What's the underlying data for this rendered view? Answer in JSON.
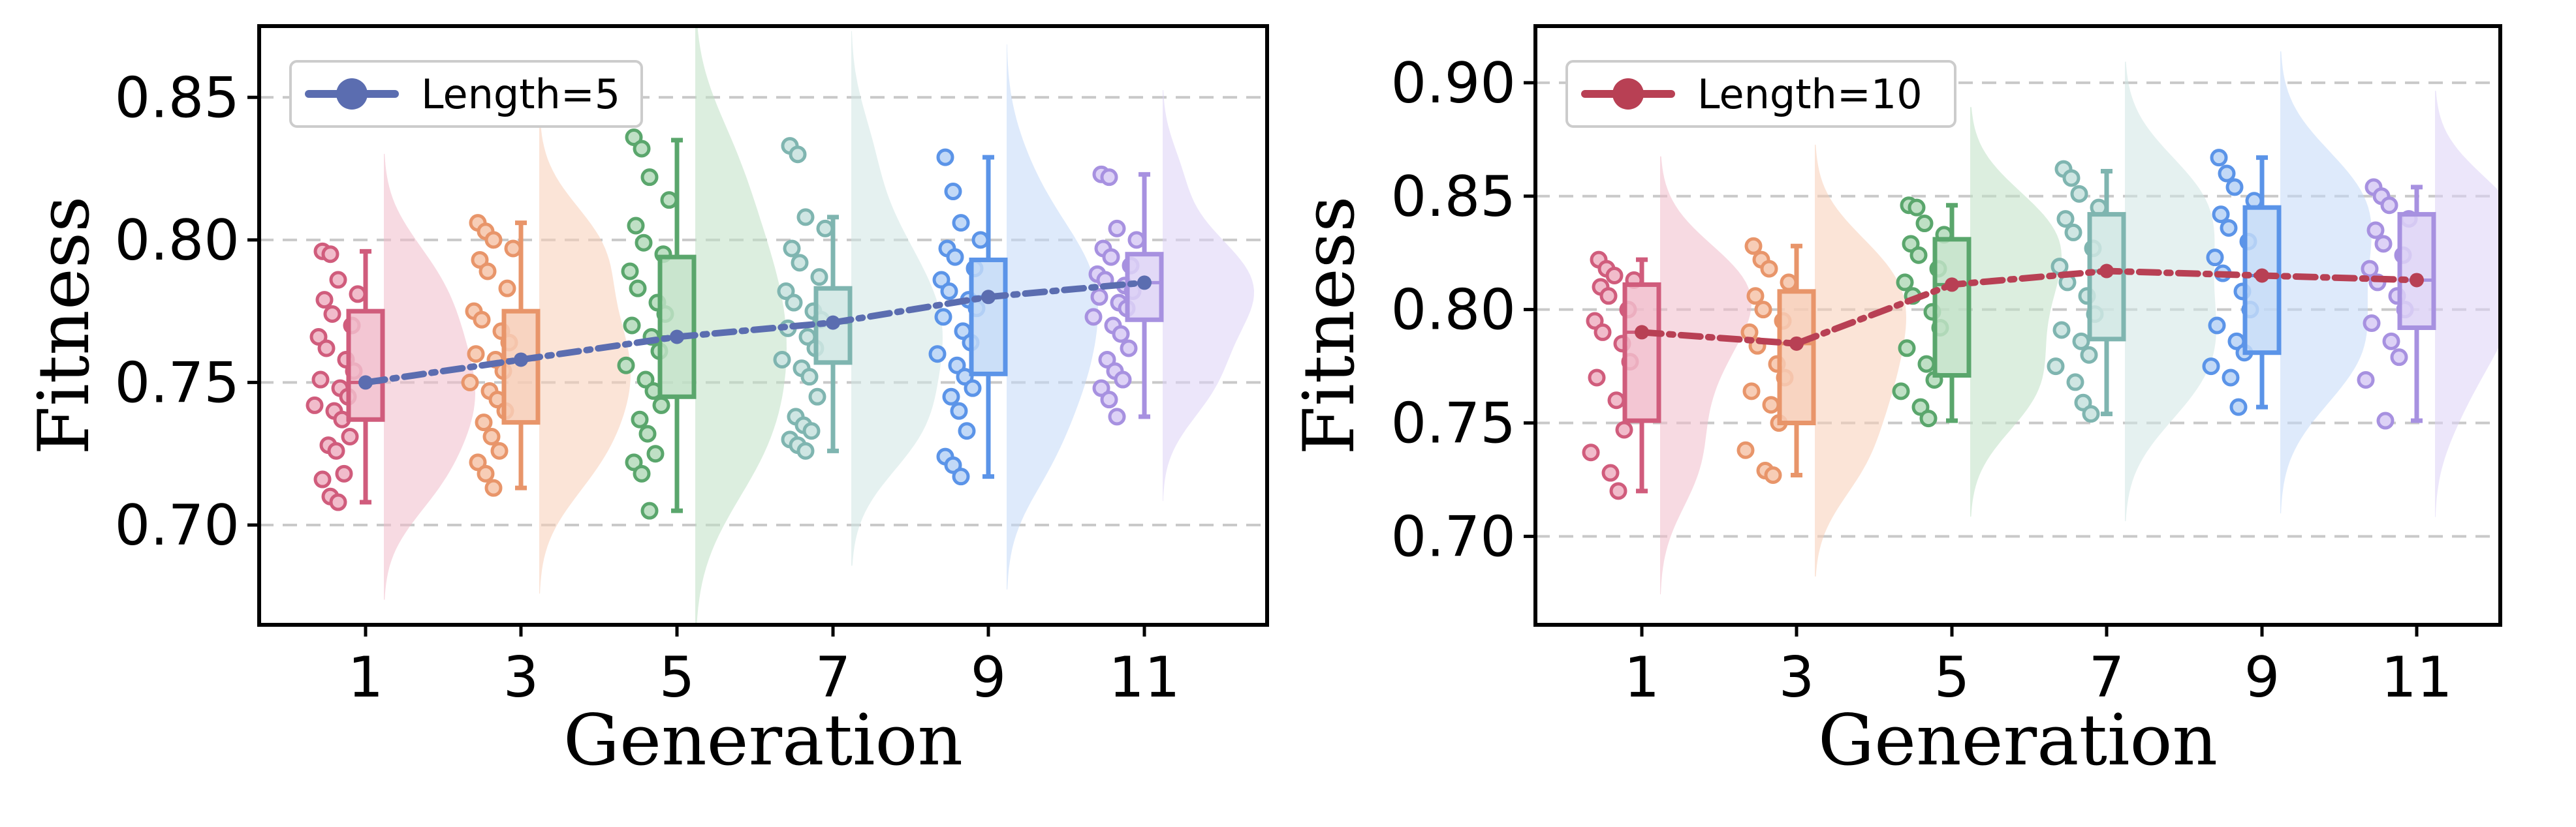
{
  "chart_data": [
    {
      "type": "raincloud",
      "xlabel": "Generation",
      "ylabel": "Fitness",
      "categories": [
        "1",
        "3",
        "5",
        "7",
        "9",
        "11"
      ],
      "ylim": [
        0.665,
        0.875
      ],
      "yticks": [
        "0.70",
        "0.75",
        "0.80",
        "0.85"
      ],
      "ytick_values": [
        0.7,
        0.75,
        0.8,
        0.85
      ],
      "grid": "y-dashed",
      "legend": {
        "label": "Length=5",
        "position": "top-left",
        "color": "#5b6db0"
      },
      "mean_line": {
        "color": "#5b6db0",
        "style": "dash-dot",
        "values": [
          0.75,
          0.758,
          0.766,
          0.771,
          0.78,
          0.785
        ]
      },
      "series": [
        {
          "name": "1",
          "color": "#d05c7c",
          "fill": "#f1bccb",
          "box": {
            "min": 0.708,
            "q1": 0.737,
            "median": 0.75,
            "q3": 0.775,
            "max": 0.796
          },
          "points": [
            0.796,
            0.795,
            0.786,
            0.781,
            0.779,
            0.774,
            0.77,
            0.766,
            0.762,
            0.758,
            0.754,
            0.751,
            0.748,
            0.745,
            0.742,
            0.74,
            0.737,
            0.731,
            0.728,
            0.726,
            0.718,
            0.716,
            0.71,
            0.708
          ]
        },
        {
          "name": "3",
          "color": "#e8956a",
          "fill": "#f7cdb6",
          "box": {
            "min": 0.713,
            "q1": 0.736,
            "median": 0.758,
            "q3": 0.775,
            "max": 0.806
          },
          "points": [
            0.806,
            0.803,
            0.8,
            0.797,
            0.793,
            0.789,
            0.783,
            0.775,
            0.772,
            0.768,
            0.764,
            0.76,
            0.758,
            0.754,
            0.75,
            0.747,
            0.744,
            0.74,
            0.736,
            0.731,
            0.726,
            0.722,
            0.718,
            0.713
          ]
        },
        {
          "name": "5",
          "color": "#5aa66c",
          "fill": "#bfe0c5",
          "box": {
            "min": 0.705,
            "q1": 0.745,
            "median": 0.766,
            "q3": 0.794,
            "max": 0.835
          },
          "points": [
            0.836,
            0.832,
            0.822,
            0.814,
            0.805,
            0.799,
            0.795,
            0.789,
            0.783,
            0.778,
            0.774,
            0.77,
            0.766,
            0.761,
            0.756,
            0.751,
            0.747,
            0.742,
            0.737,
            0.732,
            0.725,
            0.722,
            0.718,
            0.705
          ]
        },
        {
          "name": "7",
          "color": "#7fb5b0",
          "fill": "#cfe6e3",
          "box": {
            "min": 0.726,
            "q1": 0.757,
            "median": 0.771,
            "q3": 0.783,
            "max": 0.808
          },
          "points": [
            0.833,
            0.83,
            0.808,
            0.804,
            0.797,
            0.792,
            0.787,
            0.782,
            0.778,
            0.775,
            0.772,
            0.769,
            0.766,
            0.762,
            0.758,
            0.755,
            0.752,
            0.745,
            0.738,
            0.735,
            0.733,
            0.73,
            0.728,
            0.726
          ]
        },
        {
          "name": "9",
          "color": "#5b94e8",
          "fill": "#c2d9f7",
          "box": {
            "min": 0.717,
            "q1": 0.753,
            "median": 0.78,
            "q3": 0.793,
            "max": 0.829
          },
          "points": [
            0.829,
            0.817,
            0.806,
            0.8,
            0.797,
            0.794,
            0.79,
            0.786,
            0.782,
            0.779,
            0.776,
            0.773,
            0.768,
            0.764,
            0.76,
            0.756,
            0.752,
            0.748,
            0.745,
            0.74,
            0.733,
            0.724,
            0.721,
            0.717
          ]
        },
        {
          "name": "11",
          "color": "#a791e0",
          "fill": "#ddd2f6",
          "box": {
            "min": 0.738,
            "q1": 0.772,
            "median": 0.785,
            "q3": 0.795,
            "max": 0.823
          },
          "points": [
            0.823,
            0.822,
            0.804,
            0.8,
            0.797,
            0.794,
            0.791,
            0.788,
            0.786,
            0.784,
            0.782,
            0.78,
            0.778,
            0.776,
            0.773,
            0.77,
            0.767,
            0.762,
            0.758,
            0.754,
            0.751,
            0.748,
            0.744,
            0.738
          ]
        }
      ]
    },
    {
      "type": "raincloud",
      "xlabel": "Generation",
      "ylabel": "Fitness",
      "categories": [
        "1",
        "3",
        "5",
        "7",
        "9",
        "11"
      ],
      "ylim": [
        0.661,
        0.925
      ],
      "yticks": [
        "0.70",
        "0.75",
        "0.80",
        "0.85",
        "0.90"
      ],
      "ytick_values": [
        0.7,
        0.75,
        0.8,
        0.85,
        0.9
      ],
      "grid": "y-dashed",
      "legend": {
        "label": "Length=10",
        "position": "top-left",
        "color": "#b84054"
      },
      "mean_line": {
        "color": "#b84054",
        "style": "dash-dot",
        "values": [
          0.79,
          0.785,
          0.811,
          0.817,
          0.815,
          0.813
        ]
      },
      "series": [
        {
          "name": "1",
          "color": "#d05c7c",
          "fill": "#f1bccb",
          "box": {
            "min": 0.72,
            "q1": 0.751,
            "median": 0.79,
            "q3": 0.811,
            "max": 0.822
          },
          "points": [
            0.822,
            0.818,
            0.815,
            0.813,
            0.81,
            0.806,
            0.8,
            0.795,
            0.79,
            0.785,
            0.777,
            0.77,
            0.76,
            0.747,
            0.737,
            0.728,
            0.72
          ]
        },
        {
          "name": "3",
          "color": "#e8956a",
          "fill": "#f7cdb6",
          "box": {
            "min": 0.727,
            "q1": 0.75,
            "median": 0.785,
            "q3": 0.808,
            "max": 0.828
          },
          "points": [
            0.828,
            0.822,
            0.818,
            0.812,
            0.806,
            0.8,
            0.795,
            0.79,
            0.784,
            0.776,
            0.77,
            0.764,
            0.758,
            0.75,
            0.738,
            0.729,
            0.727
          ]
        },
        {
          "name": "5",
          "color": "#5aa66c",
          "fill": "#bfe0c5",
          "box": {
            "min": 0.751,
            "q1": 0.771,
            "median": 0.811,
            "q3": 0.831,
            "max": 0.846
          },
          "points": [
            0.846,
            0.845,
            0.838,
            0.833,
            0.829,
            0.824,
            0.818,
            0.812,
            0.806,
            0.799,
            0.792,
            0.783,
            0.776,
            0.769,
            0.764,
            0.757,
            0.752
          ]
        },
        {
          "name": "7",
          "color": "#7fb5b0",
          "fill": "#cfe6e3",
          "box": {
            "min": 0.754,
            "q1": 0.787,
            "median": 0.817,
            "q3": 0.842,
            "max": 0.861
          },
          "points": [
            0.862,
            0.858,
            0.851,
            0.845,
            0.84,
            0.834,
            0.827,
            0.819,
            0.812,
            0.806,
            0.798,
            0.791,
            0.786,
            0.78,
            0.775,
            0.768,
            0.759,
            0.754
          ]
        },
        {
          "name": "9",
          "color": "#5b94e8",
          "fill": "#c2d9f7",
          "box": {
            "min": 0.757,
            "q1": 0.781,
            "median": 0.815,
            "q3": 0.845,
            "max": 0.867
          },
          "points": [
            0.867,
            0.86,
            0.854,
            0.848,
            0.842,
            0.836,
            0.83,
            0.823,
            0.816,
            0.808,
            0.8,
            0.793,
            0.786,
            0.781,
            0.775,
            0.77,
            0.757
          ]
        },
        {
          "name": "11",
          "color": "#a791e0",
          "fill": "#ddd2f6",
          "box": {
            "min": 0.751,
            "q1": 0.792,
            "median": 0.813,
            "q3": 0.842,
            "max": 0.854
          },
          "points": [
            0.854,
            0.85,
            0.846,
            0.84,
            0.835,
            0.829,
            0.824,
            0.818,
            0.812,
            0.806,
            0.8,
            0.794,
            0.786,
            0.779,
            0.769,
            0.751
          ]
        }
      ]
    }
  ]
}
